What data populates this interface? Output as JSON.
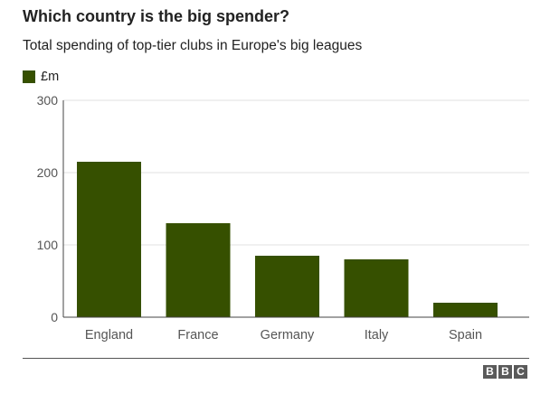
{
  "title": "Which country is the big spender?",
  "subtitle": "Total spending of top-tier clubs in Europe's big leagues",
  "colors": {
    "bar": "#365000",
    "grid": "#e2e2e2",
    "axis": "#444444",
    "text": "#555555"
  },
  "logo": "BBC",
  "chart_data": {
    "type": "bar",
    "categories": [
      "England",
      "France",
      "Germany",
      "Italy",
      "Spain"
    ],
    "series": [
      {
        "name": "£m",
        "values": [
          215,
          130,
          85,
          80,
          20
        ]
      }
    ],
    "ylim": [
      0,
      300
    ],
    "yticks": [
      0,
      100,
      200,
      300
    ],
    "grid": true,
    "legend_position": "top-left"
  }
}
